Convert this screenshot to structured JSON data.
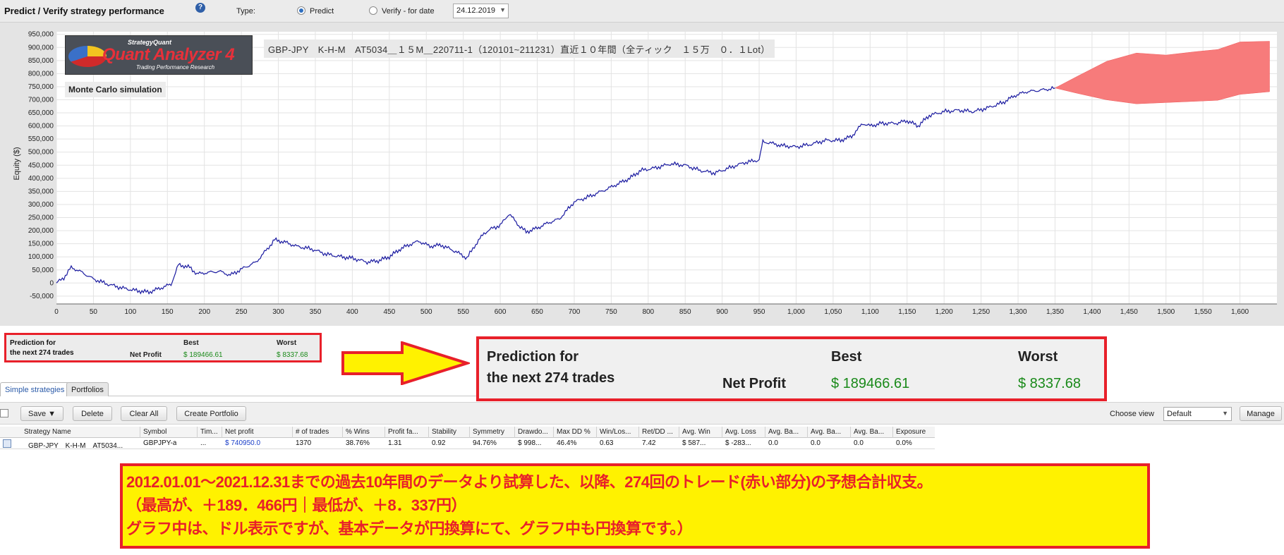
{
  "toolbar": {
    "title": "Predict / Verify strategy performance",
    "help_icon": "?",
    "type_label": "Type:",
    "predict_label": "Predict",
    "verify_label": "Verify - for date",
    "date_value": "24.12.2019"
  },
  "chart_overlay": {
    "logo_top": "StrategyQuant",
    "logo_main": "Quant Analyzer 4",
    "logo_sub": "Trading Performance   Research",
    "strategy_caption": "GBP-JPY　K-H-M　AT5034＿１５M＿220711-1（120101~211231）直近１０年間（全ティック　１５万　０．１Lot）",
    "mc_label": "Monte Carlo simulation"
  },
  "chart_data": {
    "type": "line",
    "title": "",
    "xlabel": "",
    "ylabel": "Equity ($)",
    "xlim": [
      0,
      1650
    ],
    "ylim": [
      -80000,
      960000
    ],
    "x_ticks": [
      "0",
      "50",
      "100",
      "150",
      "200",
      "250",
      "300",
      "350",
      "400",
      "450",
      "500",
      "550",
      "600",
      "650",
      "700",
      "750",
      "800",
      "850",
      "900",
      "950",
      "1,000",
      "1,050",
      "1,100",
      "1,150",
      "1,200",
      "1,250",
      "1,300",
      "1,350",
      "1,400",
      "1,450",
      "1,500",
      "1,550",
      "1,600"
    ],
    "y_ticks": [
      "-50,000",
      "0",
      "50,000",
      "100,000",
      "150,000",
      "200,000",
      "250,000",
      "300,000",
      "350,000",
      "400,000",
      "450,000",
      "500,000",
      "550,000",
      "600,000",
      "650,000",
      "700,000",
      "750,000",
      "800,000",
      "850,000",
      "900,000",
      "950,000"
    ],
    "grid": true,
    "series": [
      {
        "name": "",
        "color": "#1a1aa0",
        "points": [
          [
            0,
            0
          ],
          [
            10,
            20000
          ],
          [
            20,
            60000
          ],
          [
            35,
            40000
          ],
          [
            50,
            15000
          ],
          [
            70,
            -5000
          ],
          [
            90,
            -20000
          ],
          [
            110,
            -30000
          ],
          [
            125,
            -35000
          ],
          [
            140,
            -20000
          ],
          [
            155,
            -5000
          ],
          [
            165,
            70000
          ],
          [
            180,
            60000
          ],
          [
            190,
            35000
          ],
          [
            205,
            40000
          ],
          [
            220,
            45000
          ],
          [
            235,
            30000
          ],
          [
            255,
            60000
          ],
          [
            270,
            80000
          ],
          [
            285,
            130000
          ],
          [
            295,
            165000
          ],
          [
            310,
            155000
          ],
          [
            325,
            140000
          ],
          [
            345,
            130000
          ],
          [
            365,
            110000
          ],
          [
            385,
            100000
          ],
          [
            400,
            95000
          ],
          [
            420,
            80000
          ],
          [
            435,
            85000
          ],
          [
            450,
            100000
          ],
          [
            465,
            130000
          ],
          [
            480,
            150000
          ],
          [
            490,
            160000
          ],
          [
            505,
            140000
          ],
          [
            520,
            145000
          ],
          [
            540,
            120000
          ],
          [
            555,
            95000
          ],
          [
            565,
            140000
          ],
          [
            578,
            190000
          ],
          [
            590,
            210000
          ],
          [
            600,
            220000
          ],
          [
            612,
            265000
          ],
          [
            625,
            220000
          ],
          [
            635,
            195000
          ],
          [
            650,
            210000
          ],
          [
            665,
            230000
          ],
          [
            680,
            245000
          ],
          [
            700,
            310000
          ],
          [
            720,
            330000
          ],
          [
            745,
            360000
          ],
          [
            760,
            380000
          ],
          [
            775,
            400000
          ],
          [
            790,
            430000
          ],
          [
            810,
            440000
          ],
          [
            830,
            455000
          ],
          [
            850,
            450000
          ],
          [
            870,
            430000
          ],
          [
            890,
            420000
          ],
          [
            910,
            440000
          ],
          [
            930,
            460000
          ],
          [
            950,
            470000
          ],
          [
            955,
            540000
          ],
          [
            965,
            535000
          ],
          [
            980,
            525000
          ],
          [
            1000,
            520000
          ],
          [
            1020,
            530000
          ],
          [
            1040,
            545000
          ],
          [
            1060,
            545000
          ],
          [
            1075,
            560000
          ],
          [
            1090,
            610000
          ],
          [
            1100,
            600000
          ],
          [
            1115,
            610000
          ],
          [
            1135,
            610000
          ],
          [
            1150,
            620000
          ],
          [
            1165,
            600000
          ],
          [
            1180,
            640000
          ],
          [
            1200,
            655000
          ],
          [
            1220,
            660000
          ],
          [
            1240,
            655000
          ],
          [
            1260,
            670000
          ],
          [
            1280,
            690000
          ],
          [
            1295,
            715000
          ],
          [
            1310,
            730000
          ],
          [
            1325,
            735000
          ],
          [
            1340,
            740000
          ],
          [
            1350,
            745000
          ]
        ]
      }
    ],
    "monte_carlo_band": {
      "name": "",
      "color": "#f77b7b",
      "upper": [
        [
          1350,
          745000
        ],
        [
          1380,
          800000
        ],
        [
          1420,
          840000
        ],
        [
          1460,
          870000
        ],
        [
          1500,
          880000
        ],
        [
          1540,
          890000
        ],
        [
          1570,
          900000
        ],
        [
          1600,
          910000
        ],
        [
          1640,
          930000
        ]
      ],
      "lower": [
        [
          1350,
          745000
        ],
        [
          1380,
          730000
        ],
        [
          1420,
          705000
        ],
        [
          1460,
          690000
        ],
        [
          1500,
          695000
        ],
        [
          1540,
          700000
        ],
        [
          1570,
          705000
        ],
        [
          1600,
          715000
        ],
        [
          1640,
          725000
        ]
      ]
    }
  },
  "prediction_small": {
    "title_line1": "Prediction for",
    "title_line2": "the next 274 trades",
    "best_label": "Best",
    "worst_label": "Worst",
    "net_profit_label": "Net Profit",
    "best_value": "$ 189466.61",
    "worst_value": "$ 8337.68"
  },
  "prediction_big": {
    "title_line1": "Prediction for",
    "title_line2": "the next 274 trades",
    "best_label": "Best",
    "worst_label": "Worst",
    "net_profit_label": "Net Profit",
    "best_value": "$ 189466.61",
    "worst_value": "$ 8337.68"
  },
  "tabs": [
    {
      "label": "Simple strategies",
      "active": true
    },
    {
      "label": "Portfolios",
      "active": false
    }
  ],
  "strat_toolbar": {
    "save_label": "Save ▼",
    "delete_label": "Delete",
    "clear_all_label": "Clear All",
    "create_portfolio_label": "Create Portfolio",
    "choose_view_label": "Choose view",
    "view_value": "Default",
    "manage_label": "Manage"
  },
  "table": {
    "columns": [
      "Strategy Name",
      "Symbol",
      "Tim...",
      "Net profit",
      "# of trades",
      "% Wins",
      "Profit fa...",
      "Stability",
      "Symmetry",
      "Drawdo...",
      "Max DD %",
      "Win/Los...",
      "Ret/DD ...",
      "Avg. Win",
      "Avg. Loss",
      "Avg. Ba...",
      "Avg. Ba...",
      "Avg. Ba...",
      "Exposure"
    ],
    "rows": [
      [
        "GBP-JPY　K-H-M　AT5034...",
        "GBPJPY-a",
        "...",
        "$ 740950.0",
        "1370",
        "38.76%",
        "1.31",
        "0.92",
        "94.76%",
        "$ 998...",
        "46.4%",
        "0.63",
        "7.42",
        "$ 587...",
        "$ -283...",
        "0.0",
        "0.0",
        "0.0",
        "0.0%"
      ]
    ]
  },
  "note": {
    "line1": "2012.01.01～2021.12.31までの過去10年間のデータより試算した、以降、274回のトレード(赤い部分)の予想合計収支。",
    "line2": "（最高が、＋189．466円｜最低が、＋8．337円）",
    "line3": "グラフ中は、ドル表示ですが、基本データが円換算にて、グラフ中も円換算です。）"
  }
}
